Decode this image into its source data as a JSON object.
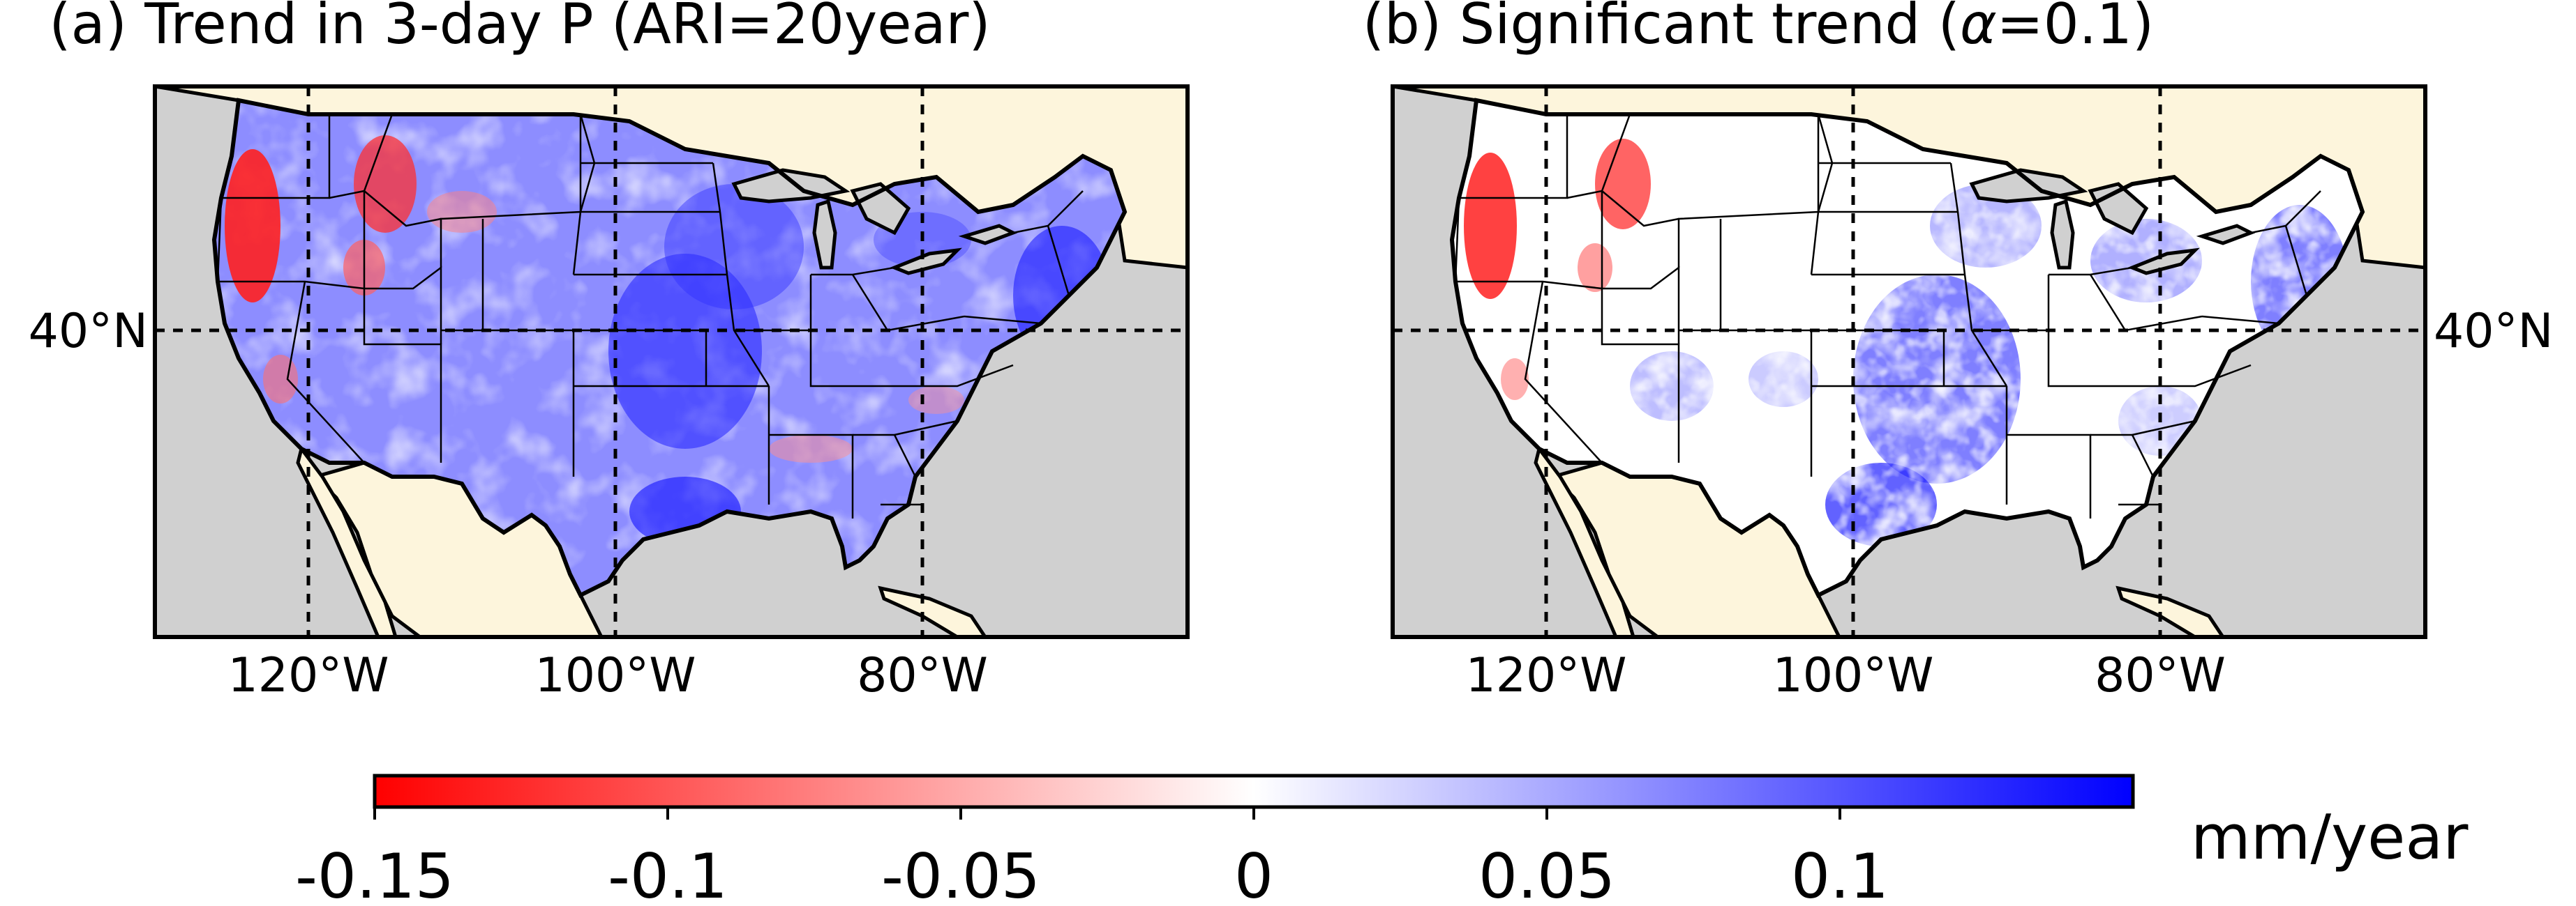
{
  "panels": [
    {
      "title": "(a) Trend in 3-day P (ARI=20year)",
      "lon_ticks": [
        "120°W",
        "100°W",
        "80°W"
      ],
      "lat_tick": "40°N",
      "lat_tick_side": "left"
    },
    {
      "title": "(b) Significant trend (",
      "title_symbol": "α",
      "title_tail": "=0.1)",
      "lon_ticks": [
        "120°W",
        "100°W",
        "80°W"
      ],
      "lat_tick": "40°N",
      "lat_tick_side": "right"
    }
  ],
  "map_extent": {
    "lon_min": -130,
    "lon_max": -63,
    "lat_min": 20,
    "lat_max": 55,
    "gridline_lons": [
      -120,
      -100,
      -80
    ],
    "gridline_lats": [
      40
    ]
  },
  "colorbar": {
    "label": "mm/year",
    "vmin": -0.15,
    "vmax": 0.15,
    "ticks": [
      -0.15,
      -0.1,
      -0.05,
      0,
      0.05,
      0.1
    ],
    "tick_labels": [
      "-0.15",
      "-0.1",
      "-0.05",
      "0",
      "0.05",
      "0.1"
    ],
    "cmap": "bwr_r"
  },
  "colors": {
    "ocean": "#d0d0d0",
    "land_other": "#fdf5dc",
    "positive": "#0000ff",
    "negative": "#ff0000",
    "zero": "#ffffff",
    "lakes": "#d0d0d0",
    "border": "#000000"
  }
}
